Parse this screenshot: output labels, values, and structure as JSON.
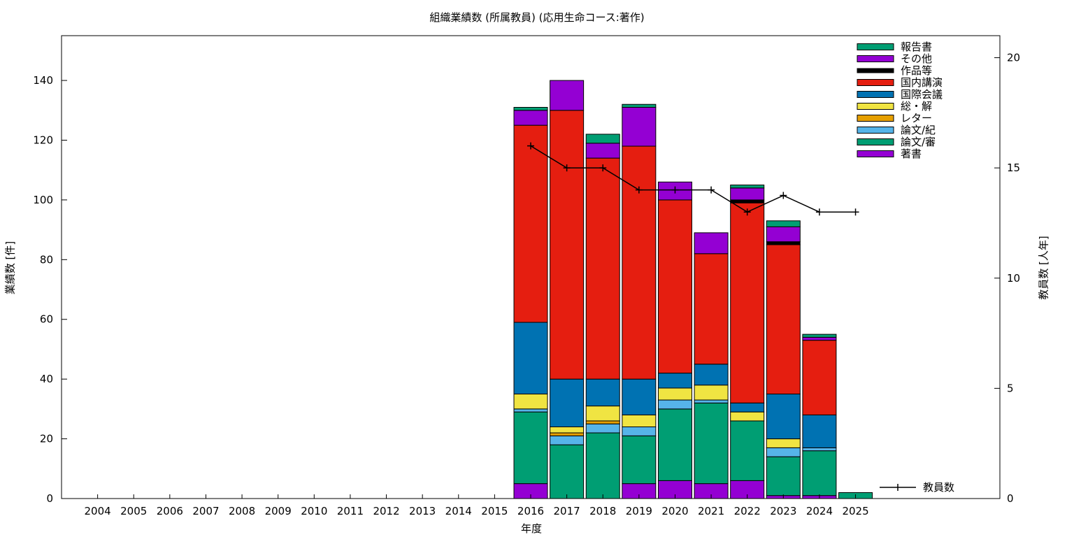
{
  "chart_data": {
    "type": "bar",
    "stacked": true,
    "title": "組織業績数 (所属教員) (応用生命コース:著作)",
    "xlabel": "年度",
    "ylabel": "業績数 [件]",
    "y2label": "教員数 [人年]",
    "ylim": [
      0,
      155
    ],
    "y2lim": [
      0,
      21
    ],
    "yticks": [
      0,
      20,
      40,
      60,
      80,
      100,
      120,
      140
    ],
    "y2ticks": [
      0,
      5,
      10,
      15,
      20
    ],
    "grid": false,
    "legend_position": "top-right",
    "categories": [
      "2004",
      "2005",
      "2006",
      "2007",
      "2008",
      "2009",
      "2010",
      "2011",
      "2012",
      "2013",
      "2014",
      "2015",
      "2016",
      "2017",
      "2018",
      "2019",
      "2020",
      "2021",
      "2022",
      "2023",
      "2024",
      "2025"
    ],
    "series": [
      {
        "name": "著書",
        "color": "#9400d3",
        "values": [
          0,
          0,
          0,
          0,
          0,
          0,
          0,
          0,
          0,
          0,
          0,
          0,
          5,
          0,
          0,
          5,
          6,
          5,
          6,
          1,
          1,
          0
        ]
      },
      {
        "name": "論文/審",
        "color": "#009e73",
        "values": [
          0,
          0,
          0,
          0,
          0,
          0,
          0,
          0,
          0,
          0,
          0,
          0,
          24,
          18,
          22,
          16,
          24,
          27,
          20,
          13,
          15,
          0
        ]
      },
      {
        "name": "論文/紀",
        "color": "#56b4e9",
        "values": [
          0,
          0,
          0,
          0,
          0,
          0,
          0,
          0,
          0,
          0,
          0,
          0,
          1,
          3,
          3,
          3,
          3,
          1,
          0,
          3,
          1,
          0
        ]
      },
      {
        "name": "レター",
        "color": "#e69f00",
        "values": [
          0,
          0,
          0,
          0,
          0,
          0,
          0,
          0,
          0,
          0,
          0,
          0,
          0,
          1,
          1,
          0,
          0,
          0,
          0,
          0,
          0,
          0
        ]
      },
      {
        "name": "総・解",
        "color": "#f0e442",
        "values": [
          0,
          0,
          0,
          0,
          0,
          0,
          0,
          0,
          0,
          0,
          0,
          0,
          5,
          2,
          5,
          4,
          4,
          5,
          3,
          3,
          0,
          0
        ]
      },
      {
        "name": "国際会議",
        "color": "#0072b2",
        "values": [
          0,
          0,
          0,
          0,
          0,
          0,
          0,
          0,
          0,
          0,
          0,
          0,
          24,
          16,
          9,
          12,
          5,
          7,
          3,
          15,
          11,
          0
        ]
      },
      {
        "name": "国内講演",
        "color": "#e51e10",
        "values": [
          0,
          0,
          0,
          0,
          0,
          0,
          0,
          0,
          0,
          0,
          0,
          0,
          66,
          90,
          74,
          78,
          58,
          37,
          67,
          50,
          25,
          0
        ]
      },
      {
        "name": "作品等",
        "color": "#000000",
        "values": [
          0,
          0,
          0,
          0,
          0,
          0,
          0,
          0,
          0,
          0,
          0,
          0,
          0,
          0,
          0,
          0,
          0,
          0,
          1,
          1,
          0,
          0
        ]
      },
      {
        "name": "その他",
        "color": "#9400d3",
        "values": [
          0,
          0,
          0,
          0,
          0,
          0,
          0,
          0,
          0,
          0,
          0,
          0,
          5,
          10,
          5,
          13,
          6,
          7,
          4,
          5,
          1,
          0
        ]
      },
      {
        "name": "報告書",
        "color": "#009e73",
        "values": [
          0,
          0,
          0,
          0,
          0,
          0,
          0,
          0,
          0,
          0,
          0,
          0,
          1,
          0,
          3,
          1,
          0,
          0,
          1,
          2,
          1,
          2
        ]
      }
    ],
    "line_series": {
      "name": "教員数",
      "color": "#000000",
      "axis": "y2",
      "x": [
        "2016",
        "2017",
        "2018",
        "2019",
        "2020",
        "2021",
        "2022",
        "2023",
        "2024",
        "2025"
      ],
      "values": [
        16,
        15,
        15,
        14,
        14,
        14,
        13,
        13.75,
        13,
        13
      ]
    }
  }
}
